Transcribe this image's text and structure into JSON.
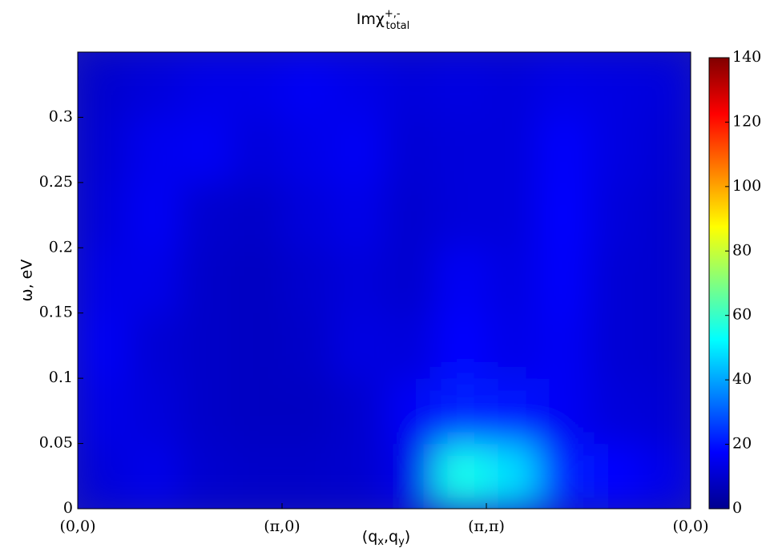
{
  "chart_data": {
    "type": "heatmap",
    "title": {
      "base": "Imχ",
      "sup": "+,-",
      "sub": "total"
    },
    "ylabel": "ω, eV",
    "xlabel": [
      "(q",
      "x",
      ",q",
      "y",
      ")"
    ],
    "categories": [
      "(0,0)",
      "(π,0)",
      "(π,π)",
      "(0,0)"
    ],
    "ylim": [
      0,
      0.35
    ],
    "yticks": [
      0,
      0.05,
      0.1,
      0.15,
      0.2,
      0.25,
      0.3
    ],
    "x_edges": [
      0,
      0.25,
      0.5,
      0.75,
      1,
      1.25,
      1.5,
      1.75,
      2,
      2.25,
      2.5,
      2.75,
      3
    ],
    "y_edges": [
      0,
      0.05,
      0.1,
      0.15,
      0.2,
      0.25,
      0.3,
      0.35
    ],
    "z": [
      [
        12,
        14,
        10,
        9,
        9,
        10,
        14,
        55,
        48,
        22,
        18,
        14
      ],
      [
        14,
        12,
        9,
        8,
        8,
        10,
        16,
        22,
        20,
        16,
        12,
        11
      ],
      [
        16,
        11,
        9,
        8,
        9,
        13,
        12,
        18,
        14,
        16,
        11,
        10
      ],
      [
        14,
        14,
        9,
        8,
        10,
        12,
        10,
        16,
        13,
        17,
        11,
        10
      ],
      [
        12,
        16,
        10,
        9,
        12,
        14,
        10,
        12,
        12,
        18,
        12,
        10
      ],
      [
        11,
        15,
        16,
        12,
        14,
        16,
        11,
        12,
        12,
        17,
        13,
        11
      ],
      [
        10,
        12,
        14,
        14,
        16,
        14,
        12,
        13,
        12,
        14,
        13,
        12
      ]
    ],
    "clim": [
      0,
      140
    ],
    "cticks": [
      0,
      20,
      40,
      60,
      80,
      100,
      120,
      140
    ],
    "colormap": [
      "#00008f",
      "#0000ff",
      "#0080ff",
      "#00ffff",
      "#80ff80",
      "#ffff00",
      "#ff8000",
      "#ff0000",
      "#800000"
    ]
  }
}
